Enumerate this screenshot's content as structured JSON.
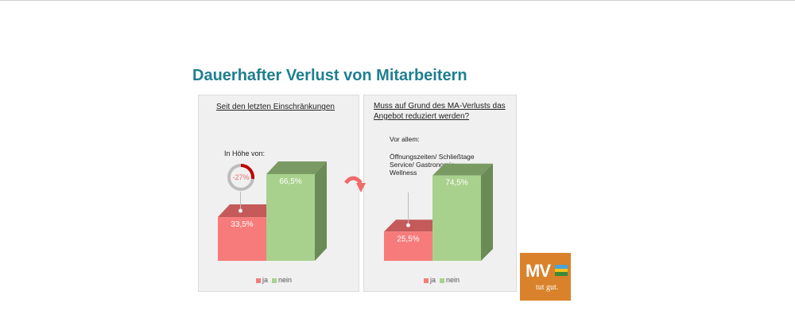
{
  "title": "Dauerhafter Verlust von Mitarbeitern",
  "colors": {
    "title": "#1f7f8f",
    "ja": "#f77b7b",
    "ja_top": "#c45a5a",
    "nein": "#a9d18e",
    "nein_top": "#7a9a64",
    "nein_side": "#6a8a56",
    "logo": "#d9822b"
  },
  "chart_data": [
    {
      "type": "bar",
      "title": "Seit den letzten Einschränkungen",
      "categories": [
        "ja",
        "nein"
      ],
      "values": [
        33.5,
        66.5
      ],
      "value_labels": [
        "33,5%",
        "66,5%"
      ],
      "legend": [
        "ja",
        "nein"
      ],
      "legend_position": "bottom",
      "grid": false,
      "annotation": {
        "label": "In Höhe von:",
        "gauge_label": "-27%",
        "gauge_value": 27
      }
    },
    {
      "type": "bar",
      "title": "Muss auf Grund des MA-Verlusts das Angebot reduziert werden?",
      "categories": [
        "ja",
        "nein"
      ],
      "values": [
        25.5,
        74.5
      ],
      "value_labels": [
        "25,5%",
        "74,5%"
      ],
      "legend": [
        "ja",
        "nein"
      ],
      "legend_position": "bottom",
      "grid": false,
      "annotation": {
        "label": "Vor allem:",
        "lines": [
          "Öffnungszeiten/ Schließtage",
          "Service/ Gastronomie",
          "Wellness"
        ]
      }
    }
  ],
  "logo": {
    "text": "MV",
    "tagline": "tut gut."
  }
}
